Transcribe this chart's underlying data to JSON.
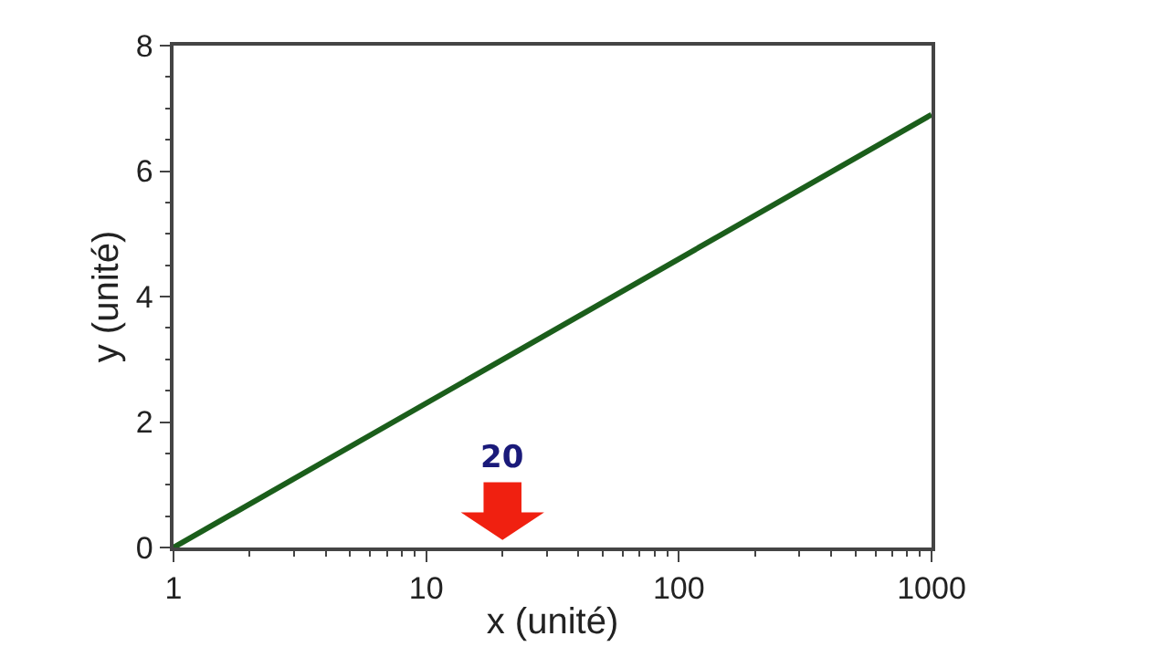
{
  "chart_data": {
    "type": "line",
    "xlabel": "x (unité)",
    "ylabel": "y (unité)",
    "x": [
      1,
      1000
    ],
    "series": [
      {
        "color": "#1b5e1b",
        "values": [
          0,
          6.9
        ]
      }
    ],
    "log": "x",
    "xlim": [
      1,
      1000
    ],
    "xticks": [
      1,
      10,
      100,
      1000
    ],
    "ylim": [
      0,
      8
    ],
    "yticks": [
      0,
      2,
      4,
      6,
      8
    ],
    "annotations": [
      "20"
    ],
    "marker": "none",
    "line_style": "solid"
  }
}
